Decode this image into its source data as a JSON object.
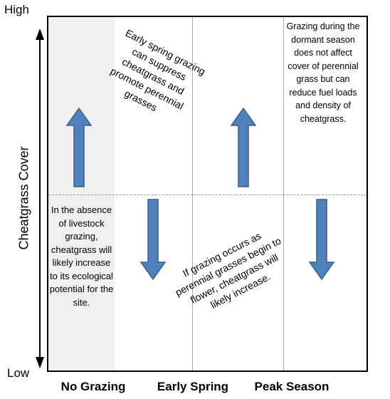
{
  "y_axis": {
    "title": "Cheatgrass Cover",
    "high_label": "High",
    "low_label": "Low"
  },
  "x_axis": {
    "categories": [
      "No Grazing",
      "Early Spring",
      "Peak Season"
    ]
  },
  "notes": {
    "no_grazing": "In the absence of livestock grazing, cheatgrass will likely increase to its ecological potential for the site.",
    "early_spring_up": "Early spring grazing can suppress cheatgrass and promote perennial grasses",
    "early_spring_down": "If grazing occurs as perennial grasses begin to flower, cheatgrass will likely increase.",
    "peak_season": "Grazing during the dormant season does not affect cover of perennial grass but can reduce fuel loads and density of cheatgrass."
  },
  "colors": {
    "arrow_fill": "#4f81bd",
    "arrow_stroke": "#385d8a",
    "no_grazing_shade": "#f0f0f0"
  },
  "arrows": [
    {
      "name": "early-spring-up-arrow",
      "direction": "up"
    },
    {
      "name": "early-spring-down-arrow",
      "direction": "down"
    },
    {
      "name": "peak-season-up-arrow",
      "direction": "up"
    },
    {
      "name": "peak-season-down-arrow",
      "direction": "down"
    }
  ]
}
